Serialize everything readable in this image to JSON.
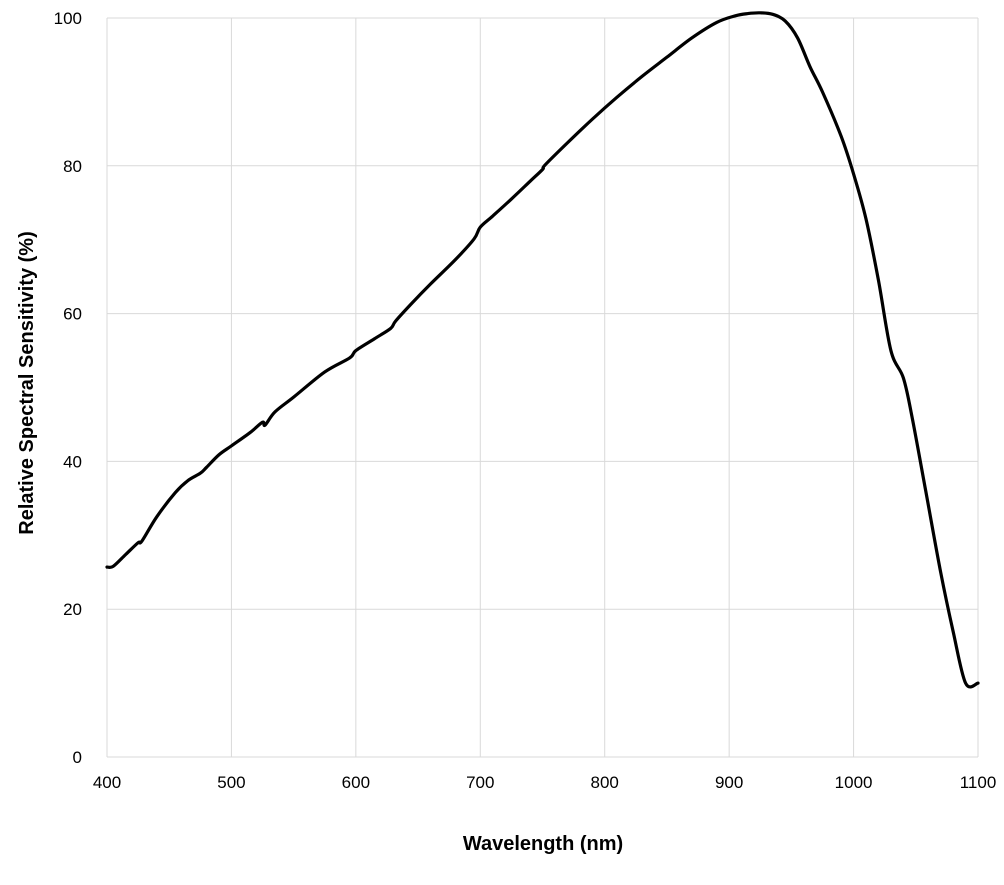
{
  "chart_data": {
    "type": "line",
    "title": "",
    "xlabel": "Wavelength (nm)",
    "ylabel": "Relative Spectral Sensitivity (%)",
    "xlim": [
      400,
      1100
    ],
    "ylim": [
      0,
      100
    ],
    "x_ticks": [
      400,
      500,
      600,
      700,
      800,
      900,
      1000,
      1100
    ],
    "y_ticks": [
      0,
      20,
      40,
      60,
      80,
      100
    ],
    "grid": true,
    "legend": "none",
    "line_color": "#000000",
    "grid_color": "#d9d9d9",
    "series": [
      {
        "x": [
          400,
          405,
          415,
          425,
          428,
          440,
          455,
          465,
          475,
          480,
          490,
          500,
          515,
          525,
          527,
          535,
          550,
          575,
          595,
          600,
          615,
          628,
          632,
          645,
          660,
          680,
          695,
          700,
          710,
          725,
          740,
          750,
          752,
          770,
          790,
          810,
          830,
          850,
          870,
          890,
          905,
          915,
          925,
          935,
          945,
          955,
          965,
          975,
          990,
          1000,
          1010,
          1020,
          1030,
          1040,
          1047,
          1058,
          1070,
          1080,
          1090,
          1100
        ],
        "y": [
          25.7,
          25.8,
          27.4,
          29.0,
          29.2,
          32.5,
          35.8,
          37.4,
          38.4,
          39.2,
          40.9,
          42.1,
          43.9,
          45.3,
          44.9,
          46.7,
          48.7,
          52.1,
          54.0,
          55.0,
          56.6,
          58.0,
          59.0,
          61.4,
          64.0,
          67.3,
          70.1,
          71.7,
          73.2,
          75.5,
          77.9,
          79.5,
          80.1,
          83.1,
          86.3,
          89.3,
          92.1,
          94.7,
          97.3,
          99.4,
          100.3,
          100.6,
          100.7,
          100.5,
          99.6,
          97.3,
          93.4,
          90.0,
          84.0,
          78.9,
          72.8,
          64.5,
          55.0,
          51.3,
          46.0,
          36.0,
          25.0,
          17.0,
          10.0,
          10.0
        ]
      }
    ]
  }
}
